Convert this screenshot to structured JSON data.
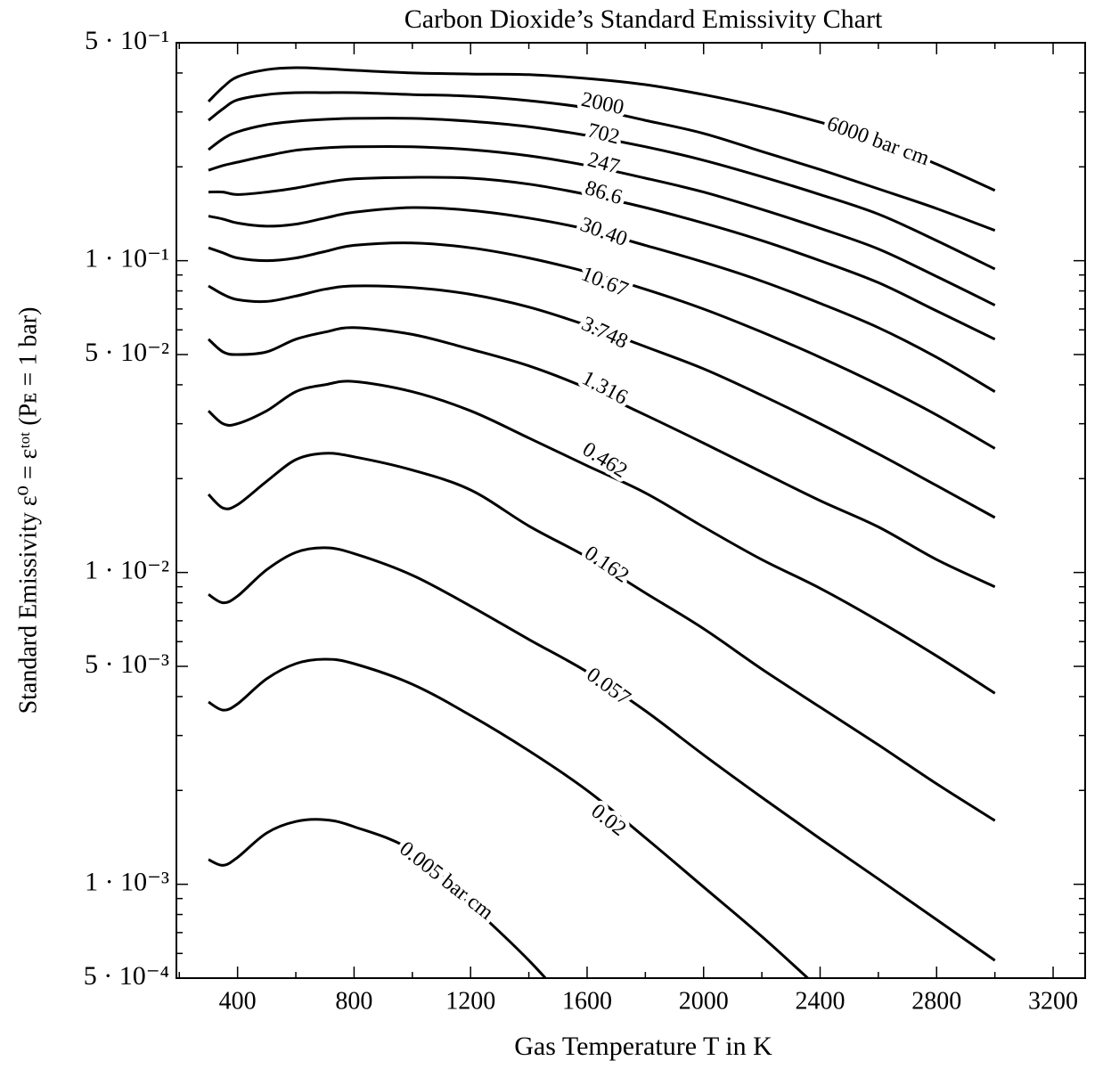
{
  "chart_data": {
    "type": "line",
    "title": "Carbon Dioxide’s Standard Emissivity Chart",
    "x_label": "Gas Temperature T in K",
    "y_label": "Standard Emissivity ε⁰ = εᵗᵒᵗ (Pᴇ = 1 bar)",
    "x": [
      300,
      350,
      400,
      500,
      600,
      700,
      800,
      1000,
      1200,
      1400,
      1600,
      1800,
      2000,
      2200,
      2400,
      2600,
      2800,
      3000
    ],
    "series": [
      {
        "name": "6000 bar cm",
        "color": "#000000",
        "values": [
          0.324,
          0.36,
          0.389,
          0.41,
          0.416,
          0.413,
          0.408,
          0.4,
          0.397,
          0.395,
          0.384,
          0.367,
          0.341,
          0.311,
          0.278,
          0.244,
          0.204,
          0.168
        ]
      },
      {
        "name": "2000",
        "color": "#000000",
        "values": [
          0.282,
          0.307,
          0.328,
          0.341,
          0.346,
          0.346,
          0.346,
          0.341,
          0.337,
          0.326,
          0.309,
          0.282,
          0.256,
          0.224,
          0.196,
          0.17,
          0.147,
          0.125
        ]
      },
      {
        "name": "702",
        "color": "#000000",
        "values": [
          0.227,
          0.246,
          0.259,
          0.273,
          0.28,
          0.284,
          0.286,
          0.286,
          0.28,
          0.269,
          0.252,
          0.232,
          0.21,
          0.186,
          0.163,
          0.141,
          0.116,
          0.094
        ]
      },
      {
        "name": "247",
        "color": "#000000",
        "values": [
          0.195,
          0.202,
          0.207,
          0.217,
          0.226,
          0.23,
          0.232,
          0.232,
          0.227,
          0.217,
          0.202,
          0.184,
          0.166,
          0.146,
          0.127,
          0.109,
          0.089,
          0.072
        ]
      },
      {
        "name": "86.6",
        "color": "#000000",
        "values": [
          0.166,
          0.166,
          0.163,
          0.166,
          0.171,
          0.178,
          0.183,
          0.185,
          0.184,
          0.176,
          0.163,
          0.148,
          0.132,
          0.116,
          0.1,
          0.085,
          0.069,
          0.056
        ]
      },
      {
        "name": "30.40",
        "color": "#000000",
        "values": [
          0.139,
          0.136,
          0.132,
          0.129,
          0.131,
          0.137,
          0.143,
          0.148,
          0.145,
          0.137,
          0.126,
          0.112,
          0.099,
          0.086,
          0.073,
          0.061,
          0.049,
          0.038
        ]
      },
      {
        "name": "10.67",
        "color": "#000000",
        "values": [
          0.11,
          0.106,
          0.102,
          0.1,
          0.102,
          0.107,
          0.112,
          0.114,
          0.11,
          0.102,
          0.092,
          0.081,
          0.07,
          0.059,
          0.049,
          0.04,
          0.032,
          0.025
        ]
      },
      {
        "name": "3.748",
        "color": "#000000",
        "values": [
          0.083,
          0.078,
          0.075,
          0.074,
          0.077,
          0.081,
          0.083,
          0.082,
          0.078,
          0.071,
          0.062,
          0.053,
          0.045,
          0.037,
          0.03,
          0.024,
          0.019,
          0.015
        ]
      },
      {
        "name": "1.316",
        "color": "#000000",
        "values": [
          0.056,
          0.051,
          0.05,
          0.051,
          0.056,
          0.059,
          0.061,
          0.058,
          0.052,
          0.046,
          0.039,
          0.032,
          0.026,
          0.021,
          0.017,
          0.014,
          0.011,
          0.009
        ]
      },
      {
        "name": "0.462",
        "color": "#000000",
        "values": [
          0.033,
          0.03,
          0.03,
          0.033,
          0.038,
          0.04,
          0.041,
          0.038,
          0.033,
          0.027,
          0.022,
          0.018,
          0.014,
          0.011,
          0.0089,
          0.007,
          0.0054,
          0.0041
        ]
      },
      {
        "name": "0.162",
        "color": "#000000",
        "values": [
          0.0178,
          0.0161,
          0.0165,
          0.0196,
          0.023,
          0.0241,
          0.0235,
          0.0213,
          0.0184,
          0.0141,
          0.0112,
          0.0086,
          0.0066,
          0.0049,
          0.0037,
          0.0028,
          0.0021,
          0.0016
        ]
      },
      {
        "name": "0.057",
        "color": "#000000",
        "values": [
          0.0085,
          0.008,
          0.0084,
          0.0102,
          0.0116,
          0.012,
          0.0115,
          0.0098,
          0.0078,
          0.0061,
          0.0048,
          0.0036,
          0.0026,
          0.0019,
          0.0014,
          0.00104,
          0.00077,
          0.00057
        ]
      },
      {
        "name": "0.02",
        "color": "#000000",
        "values": [
          0.00384,
          0.00362,
          0.00379,
          0.00456,
          0.0051,
          0.00527,
          0.0051,
          0.00438,
          0.00348,
          0.00268,
          0.002,
          0.00141,
          0.00098,
          0.00068,
          0.00046,
          null,
          null,
          null
        ]
      },
      {
        "name": "0.005 bar cm",
        "color": "#000000",
        "values": [
          0.0012,
          0.00115,
          0.00122,
          0.00146,
          0.00159,
          0.00161,
          0.00153,
          0.00128,
          0.00086,
          0.00057,
          0.000355,
          null,
          null,
          null,
          null,
          null,
          null,
          null
        ]
      }
    ],
    "xlim": [
      190,
      3310
    ],
    "xticks": [
      400,
      800,
      1200,
      1600,
      2000,
      2400,
      2800,
      3200
    ],
    "xminorticks": [
      200,
      600,
      1000,
      1400,
      1800,
      2200,
      2600,
      3000
    ],
    "ylim": [
      0.0005,
      0.5
    ],
    "ylog": true,
    "yticks": [
      {
        "value": 0.5,
        "label": "5 · 10⁻¹"
      },
      {
        "value": 0.1,
        "label": "1 · 10⁻¹"
      },
      {
        "value": 0.05,
        "label": "5 · 10⁻²"
      },
      {
        "value": 0.01,
        "label": "1 · 10⁻²"
      },
      {
        "value": 0.005,
        "label": "5 · 10⁻³"
      },
      {
        "value": 0.001,
        "label": "1 · 10⁻³"
      },
      {
        "value": 0.0005,
        "label": "5 · 10⁻⁴"
      }
    ],
    "yminorticks": [
      0.0006,
      0.0007,
      0.0008,
      0.0009,
      0.002,
      0.003,
      0.004,
      0.006,
      0.007,
      0.008,
      0.009,
      0.02,
      0.03,
      0.04,
      0.06,
      0.07,
      0.08,
      0.09,
      0.2,
      0.3,
      0.4
    ],
    "grid": false
  }
}
